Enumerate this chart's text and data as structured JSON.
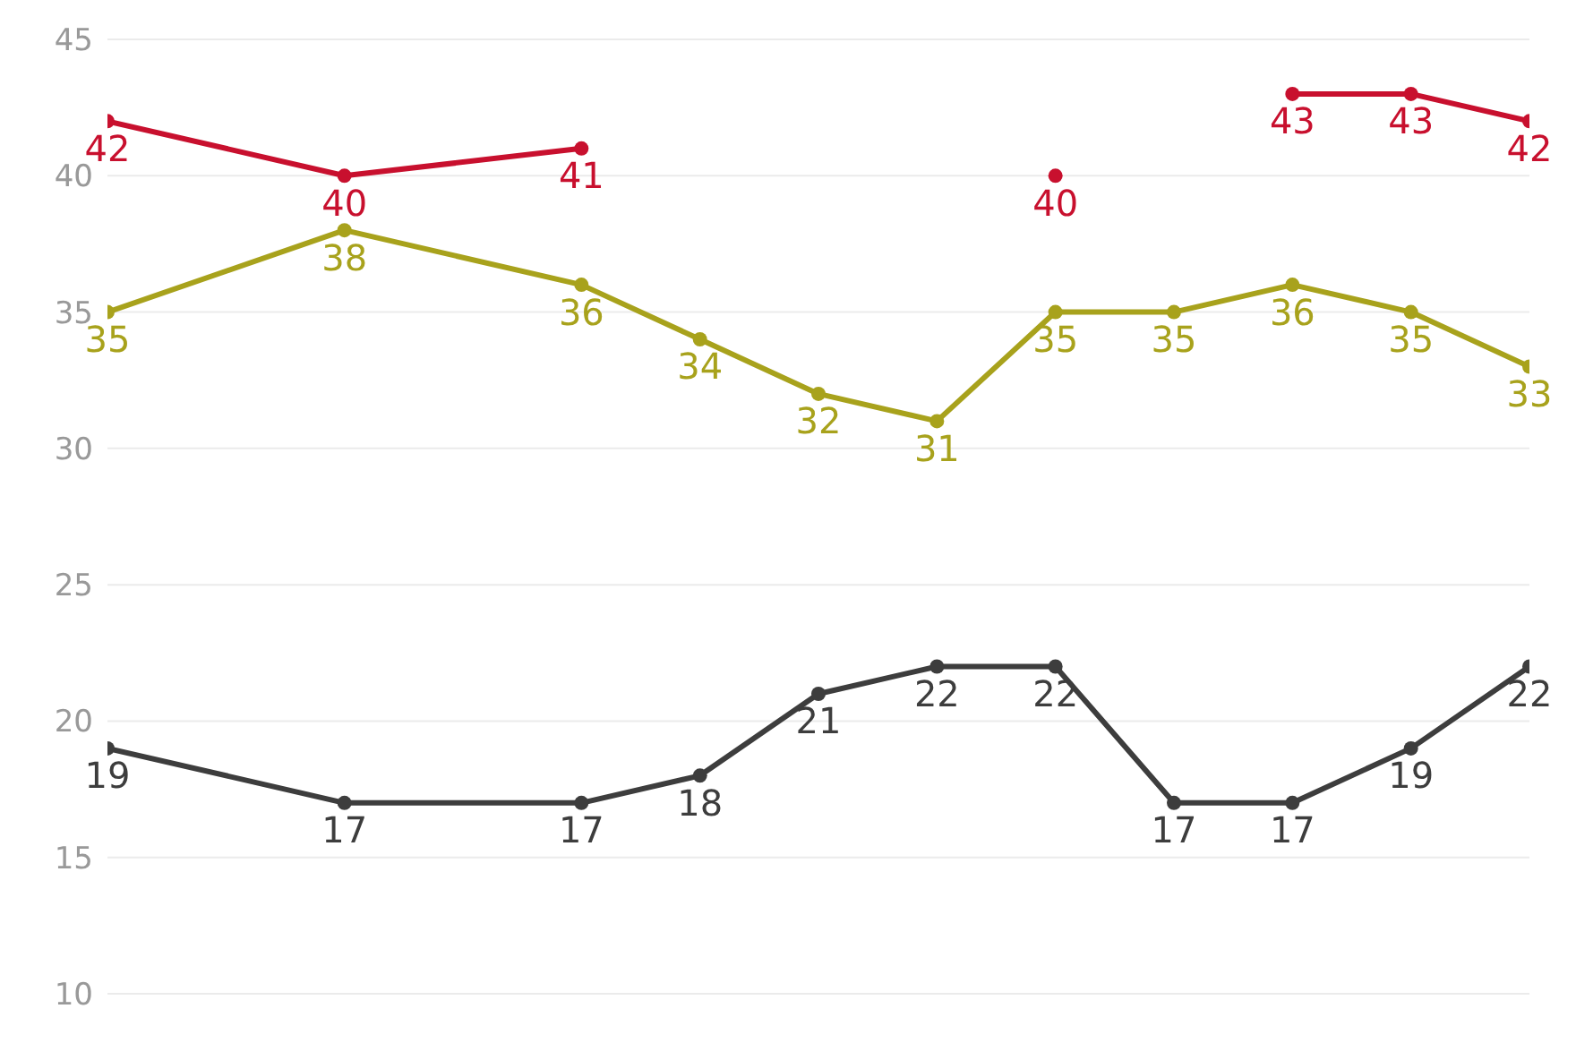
{
  "chart_data": {
    "type": "line",
    "categories": [
      null,
      null,
      null,
      null,
      null,
      null,
      null,
      null,
      null,
      null,
      null,
      null,
      null
    ],
    "series": [
      {
        "color": "#c8102e",
        "values": [
          42,
          null,
          40,
          null,
          41,
          null,
          null,
          null,
          40,
          null,
          43,
          43,
          42
        ]
      },
      {
        "color": "#a8a21c",
        "values": [
          35,
          null,
          38,
          null,
          36,
          34,
          32,
          31,
          35,
          35,
          36,
          35,
          33
        ]
      },
      {
        "color": "#3d3d3d",
        "values": [
          19,
          null,
          17,
          null,
          17,
          18,
          21,
          22,
          22,
          17,
          17,
          19,
          22
        ]
      }
    ],
    "ylim": [
      10,
      45
    ],
    "yticks": [
      10,
      15,
      20,
      25,
      30,
      35,
      40,
      45
    ],
    "grid": true,
    "tick_labels": "y",
    "data_labels": true,
    "marker": "circle",
    "line_style": "solid"
  }
}
